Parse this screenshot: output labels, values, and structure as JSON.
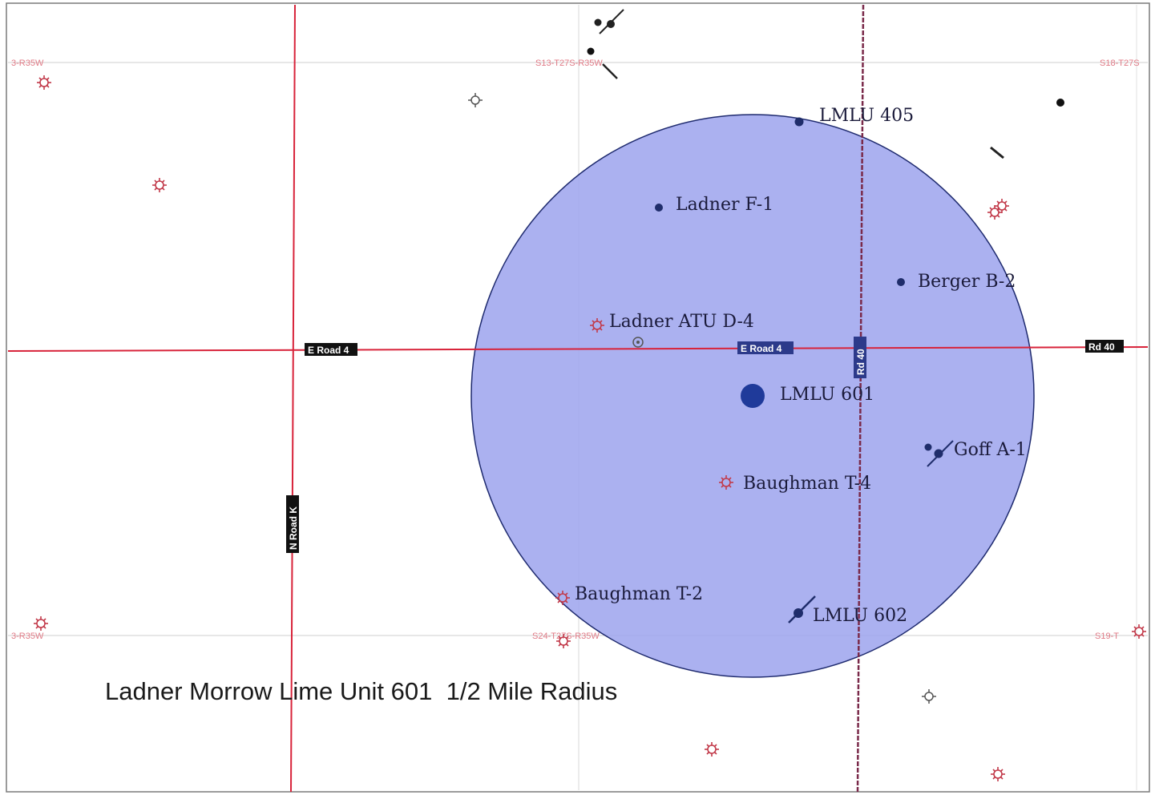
{
  "map": {
    "title": "Ladner Morrow Lime Unit 601  1/2 Mile Radius",
    "radius_label": "1/2 Mile Radius",
    "colors": {
      "radius_fill": "#9fa6ee",
      "radius_stroke": "#1e2a6e",
      "road": "#d8233a",
      "section_line": "#bdbdbd",
      "well_oil": "#1f2d6b",
      "well_gas": "#c23a4a",
      "road_label_bg": "#111111"
    },
    "roads": [
      {
        "id": "e-road-4-west",
        "label": "E Road 4"
      },
      {
        "id": "e-road-4-east",
        "label": "E Road 4"
      },
      {
        "id": "rd-40",
        "label": "Rd 40"
      },
      {
        "id": "road-k",
        "label": "N Road K"
      },
      {
        "id": "road-east",
        "label": "Rd 40"
      }
    ],
    "section_labels": [
      {
        "id": "sec-nw",
        "label": "3-R35W"
      },
      {
        "id": "sec-n",
        "label": "S13-T27S-R35W"
      },
      {
        "id": "sec-ne",
        "label": "S18-T27S"
      },
      {
        "id": "sec-sw",
        "label": "3-R35W"
      },
      {
        "id": "sec-s",
        "label": "S24-T27S-R35W"
      },
      {
        "id": "sec-se",
        "label": "S19-T"
      }
    ],
    "wells": [
      {
        "id": "lmlu-405",
        "label": "LMLU 405",
        "symbol": "oil"
      },
      {
        "id": "ladner-f-1",
        "label": "Ladner F-1",
        "symbol": "oil"
      },
      {
        "id": "berger-b-2",
        "label": "Berger B-2",
        "symbol": "oil"
      },
      {
        "id": "ladner-atu-d-4",
        "label": "Ladner ATU D-4",
        "symbol": "gas-plugged"
      },
      {
        "id": "lmlu-601",
        "label": "LMLU 601",
        "symbol": "subject"
      },
      {
        "id": "goff-a-1",
        "label": "Goff A-1",
        "symbol": "oil-directional"
      },
      {
        "id": "baughman-t-4",
        "label": "Baughman  T-4",
        "symbol": "gas"
      },
      {
        "id": "baughman-t-2",
        "label": "Baughman T-2",
        "symbol": "gas"
      },
      {
        "id": "lmlu-602",
        "label": "LMLU 602",
        "symbol": "oil-directional"
      }
    ]
  }
}
